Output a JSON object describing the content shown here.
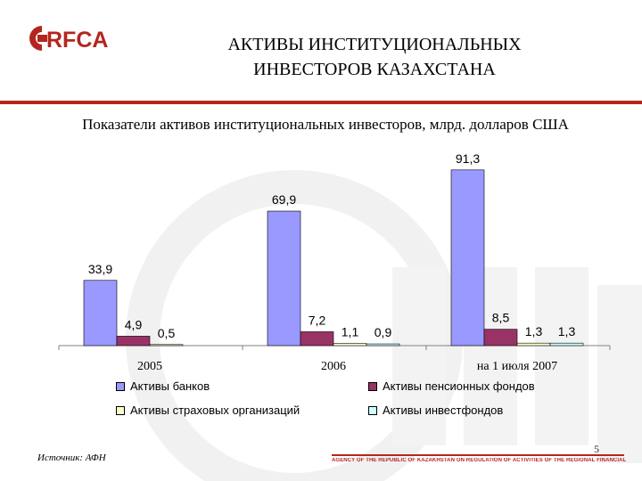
{
  "header": {
    "logo_text": "RFCA",
    "title": "АКТИВЫ ИНСТИТУЦИОНАЛЬНЫХ\nИНВЕСТОРОВ КАЗАХСТАНА"
  },
  "subtitle": "Показатели активов институциональных инвесторов, млрд. долларов США",
  "colors": {
    "banks": "#9999ff",
    "pension": "#993366",
    "insurance": "#ffffcc",
    "investfunds": "#ccffff",
    "accent": "#b3261e"
  },
  "chart_data": {
    "type": "bar",
    "categories": [
      "2005",
      "2006",
      "на 1 июля      2007"
    ],
    "series": [
      {
        "name": "Активы банков",
        "values": [
          33.9,
          69.9,
          91.3
        ],
        "labels": [
          "33,9",
          "69,9",
          "91,3"
        ]
      },
      {
        "name": "Активы пенсионных фондов",
        "values": [
          4.9,
          7.2,
          8.5
        ],
        "labels": [
          "4,9",
          "7,2",
          "8,5"
        ]
      },
      {
        "name": "Активы страховых организаций",
        "values": [
          0.5,
          1.1,
          1.3
        ],
        "labels": [
          "0,5",
          "1,1",
          "1,3"
        ]
      },
      {
        "name": "Активы инвестфондов",
        "values": [
          null,
          0.9,
          1.3
        ],
        "labels": [
          "",
          "0,9",
          "1,3"
        ]
      }
    ],
    "ylim": [
      0,
      100
    ],
    "grid": false,
    "legend_position": "bottom"
  },
  "footer": {
    "source": "Источник: АФН",
    "page_number": "5",
    "org": "AGENCY OF THE REPUBLIC OF KAZAKHSTAN ON REGULATION OF ACTIVITIES OF THE REGIONAL FINANCIAL CENTRE OF ALMATY CITY"
  }
}
